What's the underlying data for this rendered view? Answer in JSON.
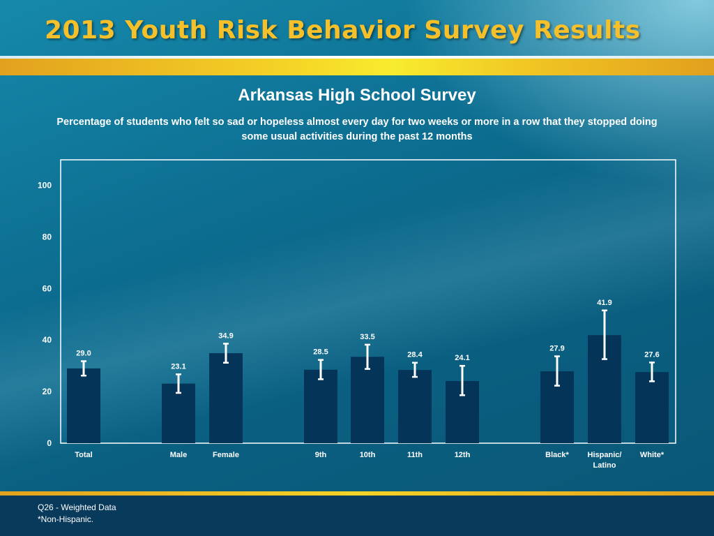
{
  "header": {
    "title": "2013 Youth Risk Behavior Survey Results"
  },
  "colors": {
    "bar": "#053459",
    "accent": "#f5c02a",
    "frame": "#ffffff"
  },
  "chart_data": {
    "type": "bar",
    "title": "Arkansas High School Survey",
    "subtitle": "Percentage of students who felt so sad or hopeless almost every day for two weeks or more in a row that they stopped doing some usual activities during the past 12 months",
    "ylim": [
      0,
      100
    ],
    "yticks": [
      0,
      20,
      40,
      60,
      80,
      100
    ],
    "grid": false,
    "categories": [
      "Total",
      "Male",
      "Female",
      "9th",
      "10th",
      "11th",
      "12th",
      "Black*",
      "Hispanic/\nLatino",
      "White*"
    ],
    "values": [
      29.0,
      23.1,
      34.9,
      28.5,
      33.5,
      28.4,
      24.1,
      27.9,
      41.9,
      27.6
    ],
    "value_labels": [
      "29.0",
      "23.1",
      "34.9",
      "28.5",
      "33.5",
      "28.4",
      "24.1",
      "27.9",
      "41.9",
      "27.6"
    ],
    "ci_low": [
      26.2,
      19.5,
      31.2,
      24.8,
      28.8,
      25.7,
      18.6,
      22.3,
      32.6,
      24.0
    ],
    "ci_high": [
      31.8,
      26.7,
      38.6,
      32.3,
      38.2,
      31.2,
      30.0,
      33.7,
      51.5,
      31.3
    ]
  },
  "footnotes": [
    "Q26 - Weighted Data",
    "*Non-Hispanic."
  ]
}
